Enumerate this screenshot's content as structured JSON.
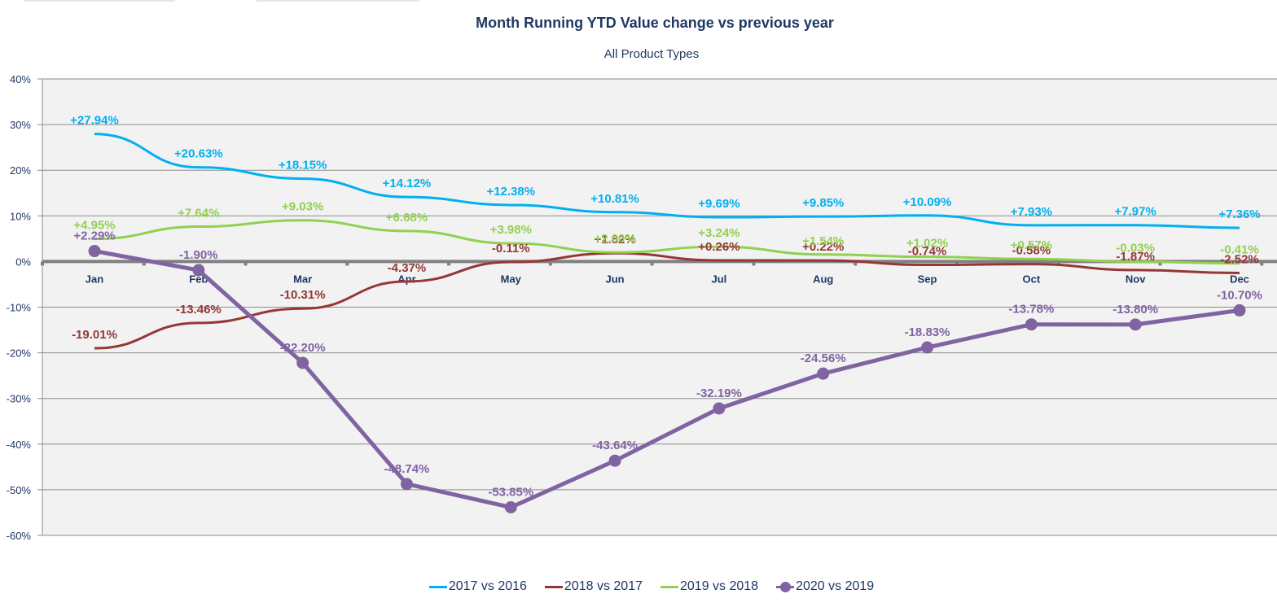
{
  "chart_data": {
    "type": "line",
    "title": "Month Running YTD Value change vs previous year",
    "subtitle": "All Product Types",
    "xlabel": "",
    "ylabel": "",
    "categories": [
      "Jan",
      "Feb",
      "Mar",
      "Apr",
      "May",
      "Jun",
      "Jul",
      "Aug",
      "Sep",
      "Oct",
      "Nov",
      "Dec"
    ],
    "ylim": [
      -60,
      40
    ],
    "yticks": [
      40,
      30,
      20,
      10,
      0,
      -10,
      -20,
      -30,
      -40,
      -50,
      -60
    ],
    "ytick_labels": [
      "40%",
      "30%",
      "20%",
      "10%",
      "0%",
      "-10%",
      "-20%",
      "-30%",
      "-40%",
      "-50%",
      "-60%"
    ],
    "grid": true,
    "legend_position": "bottom",
    "series": [
      {
        "name": "2017 vs 2016",
        "color": "#00b0f0",
        "markers": false,
        "values": [
          27.94,
          20.63,
          18.15,
          14.12,
          12.38,
          10.81,
          9.69,
          9.85,
          10.09,
          7.93,
          7.97,
          7.36
        ],
        "labels": [
          "+27.94%",
          "+20.63%",
          "+18.15%",
          "+14.12%",
          "+12.38%",
          "+10.81%",
          "+9.69%",
          "+9.85%",
          "+10.09%",
          "+7.93%",
          "+7.97%",
          "+7.36%"
        ]
      },
      {
        "name": "2018 vs 2017",
        "color": "#953735",
        "markers": false,
        "values": [
          -19.01,
          -13.46,
          -10.31,
          -4.37,
          -0.11,
          1.82,
          0.26,
          0.22,
          -0.74,
          -0.58,
          -1.87,
          -2.52
        ],
        "labels": [
          "-19.01%",
          "-13.46%",
          "-10.31%",
          "-4.37%",
          "-0.11%",
          "+1.82%",
          "+0.26%",
          "+0.22%",
          "-0.74%",
          "-0.58%",
          "-1.87%",
          "-2.52%"
        ]
      },
      {
        "name": "2019 vs 2018",
        "color": "#92d050",
        "markers": false,
        "values": [
          4.95,
          7.64,
          9.03,
          6.68,
          3.98,
          2.0,
          3.24,
          1.54,
          1.02,
          0.57,
          -0.03,
          -0.41
        ],
        "labels": [
          "+4.95%",
          "+7.64%",
          "+9.03%",
          "+6.68%",
          "+3.98%",
          "+2.00%",
          "+3.24%",
          "+1.54%",
          "+1.02%",
          "+0.57%",
          "-0.03%",
          "-0.41%"
        ]
      },
      {
        "name": "2020 vs 2019",
        "color": "#8064a2",
        "markers": true,
        "values": [
          2.29,
          -1.9,
          -22.2,
          -48.74,
          -53.85,
          -43.64,
          -32.19,
          -24.56,
          -18.83,
          -13.78,
          -13.8,
          -10.7
        ],
        "labels": [
          "+2.29%",
          "-1.90%",
          "-22.20%",
          "-48.74%",
          "-53.85%",
          "-43.64%",
          "-32.19%",
          "-24.56%",
          "-18.83%",
          "-13.78%",
          "-13.80%",
          "-10.70%"
        ]
      }
    ]
  }
}
